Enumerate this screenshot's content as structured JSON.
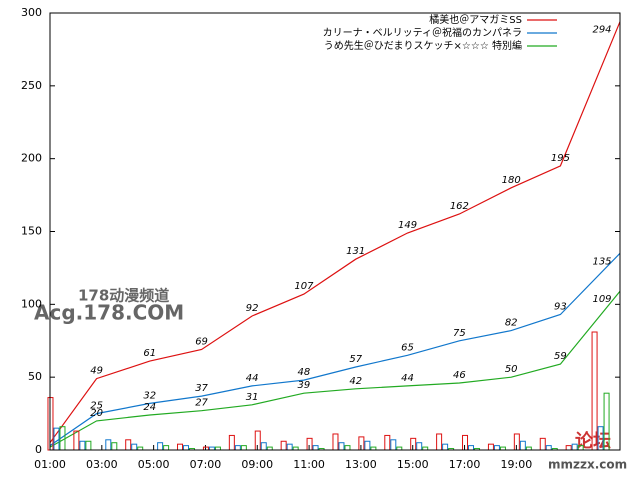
{
  "chart_data": [
    {
      "type": "line",
      "x": [
        1,
        2.8,
        4.85,
        6.85,
        8.8,
        10.8,
        12.8,
        14.8,
        16.8,
        18.8,
        20.7,
        23
      ],
      "xlim": [
        1,
        23
      ],
      "xticks": [
        {
          "value": 1,
          "label": "01:00"
        },
        {
          "value": 3,
          "label": "03:00"
        },
        {
          "value": 5,
          "label": "05:00"
        },
        {
          "value": 7,
          "label": "07:00"
        },
        {
          "value": 9,
          "label": "09:00"
        },
        {
          "value": 11,
          "label": "11:00"
        },
        {
          "value": 13,
          "label": "13:00"
        },
        {
          "value": 15,
          "label": "15:00"
        },
        {
          "value": 17,
          "label": "17:00"
        },
        {
          "value": 19,
          "label": "19:00"
        }
      ],
      "ylim": [
        0,
        300
      ],
      "yticks": [
        0,
        50,
        100,
        150,
        200,
        250,
        300
      ],
      "legend": "top-right",
      "series": [
        {
          "name": "橘美也＠アマガミSS",
          "color": "#dd1111",
          "values": [
            5,
            49,
            61,
            69,
            92,
            107,
            131,
            149,
            162,
            180,
            195,
            294
          ]
        },
        {
          "name": "カリーナ・ベルリッティ＠祝福のカンパネラ",
          "color": "#1177cc",
          "values": [
            3,
            25,
            32,
            37,
            44,
            48,
            57,
            65,
            75,
            82,
            93,
            135
          ]
        },
        {
          "name": "うめ先生＠ひだまりスケッチ×☆☆☆ 特別編",
          "color": "#22aa22",
          "values": [
            2,
            20,
            24,
            27,
            31,
            39,
            42,
            44,
            46,
            50,
            59,
            109
          ]
        }
      ]
    },
    {
      "type": "bar",
      "x": [
        1.25,
        2.25,
        3.25,
        4.25,
        5.25,
        6.25,
        7.25,
        8.25,
        9.25,
        10.25,
        11.25,
        12.25,
        13.25,
        14.25,
        15.25,
        16.25,
        17.25,
        18.25,
        19.25,
        20.25,
        21.25,
        22.25
      ],
      "xlim": [
        1,
        23
      ],
      "ylim": [
        0,
        300
      ],
      "series": [
        {
          "color": "#dd1111",
          "values": [
            36,
            13,
            0,
            7,
            0,
            4,
            2,
            10,
            13,
            6,
            8,
            11,
            9,
            10,
            8,
            11,
            10,
            4,
            11,
            8,
            3,
            81
          ]
        },
        {
          "color": "#1177cc",
          "values": [
            15,
            6,
            7,
            4,
            5,
            3,
            2,
            3,
            5,
            4,
            3,
            5,
            6,
            7,
            5,
            4,
            3,
            3,
            6,
            3,
            4,
            16
          ]
        },
        {
          "color": "#22aa22",
          "values": [
            16,
            6,
            5,
            2,
            3,
            1,
            2,
            3,
            2,
            2,
            1,
            3,
            2,
            2,
            2,
            1,
            1,
            2,
            2,
            1,
            3,
            39
          ]
        }
      ]
    }
  ],
  "watermarks": [
    "178动漫频道",
    "Acg.178.COM",
    "论坛",
    "mmzzx.com"
  ]
}
